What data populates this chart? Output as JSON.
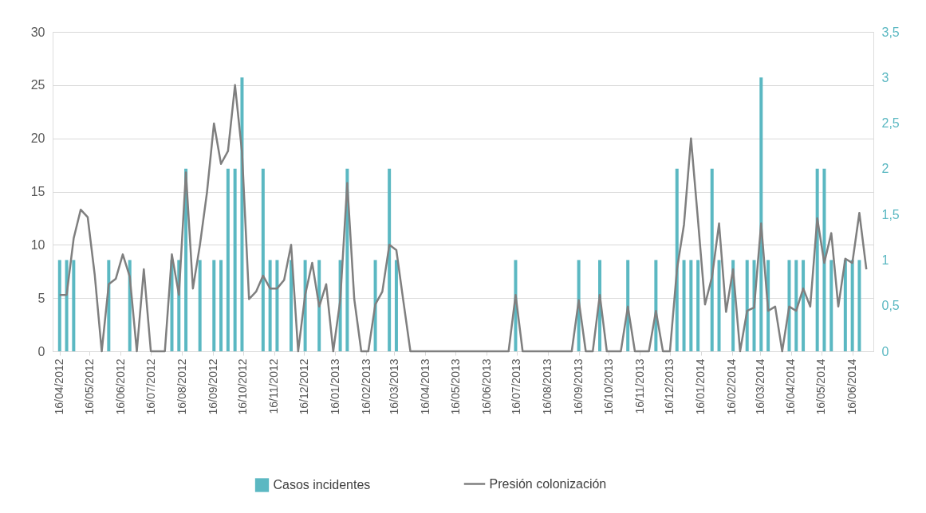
{
  "chart_data": {
    "type": "bar",
    "legend": "bottom",
    "grid": "y",
    "x": [
      "2012-04-16",
      "2012-04-23",
      "2012-04-30",
      "2012-05-07",
      "2012-05-14",
      "2012-05-21",
      "2012-05-28",
      "2012-06-04",
      "2012-06-11",
      "2012-06-18",
      "2012-06-25",
      "2012-07-02",
      "2012-07-09",
      "2012-07-16",
      "2012-07-23",
      "2012-07-30",
      "2012-08-06",
      "2012-08-13",
      "2012-08-20",
      "2012-08-27",
      "2012-09-03",
      "2012-09-10",
      "2012-09-17",
      "2012-09-24",
      "2012-10-01",
      "2012-10-08",
      "2012-10-15",
      "2012-10-22",
      "2012-10-29",
      "2012-11-05",
      "2012-11-12",
      "2012-11-19",
      "2012-11-26",
      "2012-12-03",
      "2012-12-10",
      "2012-12-17",
      "2012-12-24",
      "2012-12-31",
      "2013-01-07",
      "2013-01-14",
      "2013-01-21",
      "2013-01-28",
      "2013-02-04",
      "2013-02-11",
      "2013-02-18",
      "2013-02-25",
      "2013-03-04",
      "2013-03-11",
      "2013-03-18",
      "2013-03-25",
      "2013-04-01",
      "2013-04-08",
      "2013-04-15",
      "2013-04-22",
      "2013-04-29",
      "2013-05-06",
      "2013-05-13",
      "2013-05-20",
      "2013-05-27",
      "2013-06-03",
      "2013-06-10",
      "2013-06-17",
      "2013-06-24",
      "2013-07-01",
      "2013-07-08",
      "2013-07-15",
      "2013-07-22",
      "2013-07-29",
      "2013-08-05",
      "2013-08-12",
      "2013-08-19",
      "2013-08-26",
      "2013-09-02",
      "2013-09-09",
      "2013-09-16",
      "2013-09-23",
      "2013-09-30",
      "2013-10-07",
      "2013-10-14",
      "2013-10-21",
      "2013-10-28",
      "2013-11-04",
      "2013-11-11",
      "2013-11-18",
      "2013-11-25",
      "2013-12-02",
      "2013-12-09",
      "2013-12-16",
      "2013-12-23",
      "2013-12-30",
      "2014-01-06",
      "2014-01-13",
      "2014-01-20",
      "2014-01-27",
      "2014-02-03",
      "2014-02-10",
      "2014-02-17",
      "2014-02-24",
      "2014-03-03",
      "2014-03-10",
      "2014-03-17",
      "2014-03-24",
      "2014-03-31",
      "2014-04-07",
      "2014-04-14",
      "2014-04-21",
      "2014-04-28",
      "2014-05-05",
      "2014-05-12",
      "2014-05-19",
      "2014-05-26",
      "2014-06-02",
      "2014-06-09",
      "2014-06-16",
      "2014-06-23",
      "2014-06-30"
    ],
    "xlim": [
      "2012-04-13",
      "2014-07-03"
    ],
    "xticks": [
      {
        "value": "2012-04-16",
        "label": "16/04/2012"
      },
      {
        "value": "2012-05-16",
        "label": "16/05/2012"
      },
      {
        "value": "2012-06-16",
        "label": "16/06/2012"
      },
      {
        "value": "2012-07-16",
        "label": "16/07/2012"
      },
      {
        "value": "2012-08-16",
        "label": "16/08/2012"
      },
      {
        "value": "2012-09-16",
        "label": "16/09/2012"
      },
      {
        "value": "2012-10-16",
        "label": "16/10/2012"
      },
      {
        "value": "2012-11-16",
        "label": "16/11/2012"
      },
      {
        "value": "2012-12-16",
        "label": "16/12/2012"
      },
      {
        "value": "2013-01-16",
        "label": "16/01/2013"
      },
      {
        "value": "2013-02-16",
        "label": "16/02/2013"
      },
      {
        "value": "2013-03-16",
        "label": "16/03/2013"
      },
      {
        "value": "2013-04-16",
        "label": "16/04/2013"
      },
      {
        "value": "2013-05-16",
        "label": "16/05/2013"
      },
      {
        "value": "2013-06-16",
        "label": "16/06/2013"
      },
      {
        "value": "2013-07-16",
        "label": "16/07/2013"
      },
      {
        "value": "2013-08-16",
        "label": "16/08/2013"
      },
      {
        "value": "2013-09-16",
        "label": "16/09/2013"
      },
      {
        "value": "2013-10-16",
        "label": "16/10/2013"
      },
      {
        "value": "2013-11-16",
        "label": "16/11/2013"
      },
      {
        "value": "2013-12-16",
        "label": "16/12/2013"
      },
      {
        "value": "2014-01-16",
        "label": "16/01/2014"
      },
      {
        "value": "2014-02-16",
        "label": "16/02/2014"
      },
      {
        "value": "2014-03-16",
        "label": "16/03/2014"
      },
      {
        "value": "2014-04-16",
        "label": "16/04/2014"
      },
      {
        "value": "2014-05-16",
        "label": "16/05/2014"
      },
      {
        "value": "2014-06-16",
        "label": "16/06/2014"
      }
    ],
    "ylim": [
      0,
      30
    ],
    "yticks": [
      0,
      5,
      10,
      15,
      20,
      25,
      30
    ],
    "y2lim": [
      0,
      3.5
    ],
    "y2ticks": [
      0,
      {
        "value": 0.5,
        "label": "0,5"
      },
      1,
      {
        "value": 1.5,
        "label": "1,5"
      },
      2,
      {
        "value": 2.5,
        "label": "2,5"
      },
      3,
      {
        "value": 3.5,
        "label": "3,5"
      }
    ],
    "series": [
      {
        "name": "Casos incidentes",
        "axis": "y2",
        "color": "#5bb8c2",
        "values": [
          1,
          1,
          1,
          0,
          0,
          0,
          0,
          1,
          0,
          0,
          1,
          0,
          0,
          0,
          0,
          0,
          1,
          1,
          2,
          0,
          1,
          0,
          1,
          1,
          2,
          2,
          3,
          0,
          0,
          2,
          1,
          1,
          0,
          1,
          0,
          1,
          0,
          1,
          0,
          0,
          1,
          2,
          0,
          0,
          0,
          1,
          0,
          2,
          1,
          0,
          0,
          0,
          0,
          0,
          0,
          0,
          0,
          0,
          0,
          0,
          0,
          0,
          0,
          0,
          0,
          1,
          0,
          0,
          0,
          0,
          0,
          0,
          0,
          0,
          1,
          0,
          0,
          1,
          0,
          0,
          0,
          1,
          0,
          0,
          0,
          1,
          0,
          0,
          2,
          1,
          1,
          1,
          0,
          2,
          1,
          0,
          1,
          0,
          1,
          1,
          3,
          1,
          0,
          0,
          1,
          1,
          1,
          0,
          2,
          2,
          1,
          0,
          1,
          1,
          1,
          0
        ]
      },
      {
        "name": "Presión colonización",
        "type": "line",
        "color": "#7f7f7f",
        "values": [
          5.3,
          5.3,
          10.6,
          13.3,
          12.6,
          7.2,
          0,
          6.3,
          6.8,
          9.1,
          7.0,
          0,
          7.7,
          0,
          0,
          0,
          9.1,
          5.3,
          16.8,
          5.9,
          10.0,
          14.9,
          21.4,
          17.6,
          18.8,
          25.0,
          18.7,
          4.9,
          5.6,
          7.1,
          5.9,
          5.9,
          6.7,
          10.0,
          0,
          5.3,
          8.3,
          4.2,
          6.3,
          0,
          4.8,
          15.8,
          4.9,
          0,
          0,
          4.4,
          5.6,
          10.0,
          9.5,
          4.7,
          0,
          0,
          0,
          0,
          0,
          0,
          0,
          0,
          0,
          0,
          0,
          0,
          0,
          0,
          0,
          5.3,
          0,
          0,
          0,
          0,
          0,
          0,
          0,
          0,
          4.8,
          0,
          0,
          5.3,
          0,
          0,
          0,
          4.2,
          0,
          0,
          0,
          3.8,
          0,
          0,
          7.7,
          11.9,
          20.0,
          12.3,
          4.4,
          7.0,
          12.0,
          3.7,
          7.7,
          0,
          3.8,
          4.1,
          12.0,
          3.8,
          4.2,
          0,
          4.2,
          3.8,
          5.9,
          4.2,
          12.5,
          8.3,
          11.1,
          4.2,
          8.7,
          8.3,
          13.0,
          7.7
        ]
      }
    ]
  }
}
